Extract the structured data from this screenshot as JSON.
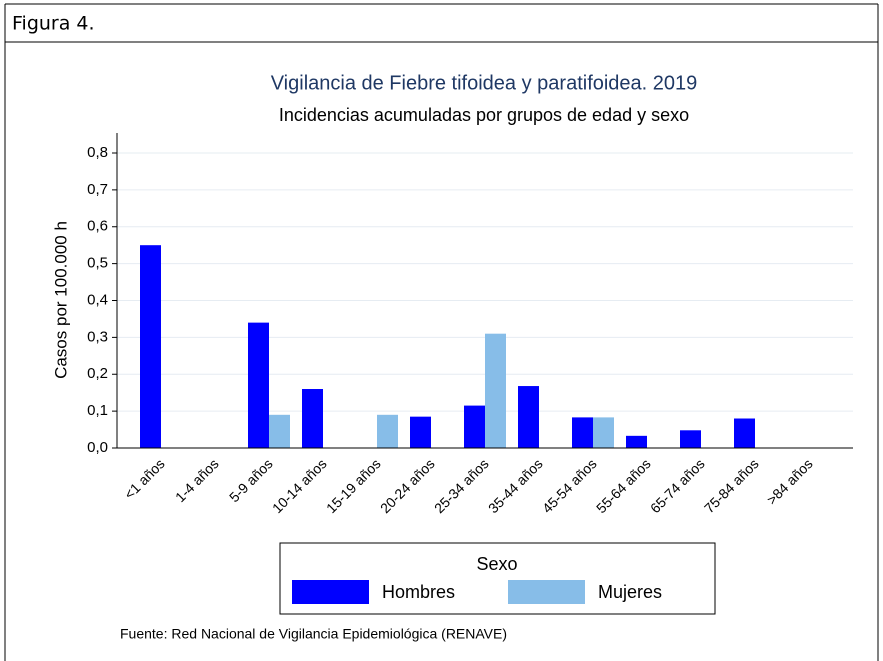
{
  "caption": "Figura 4.",
  "source": "Fuente: Red Nacional de Vigilancia Epidemiológica (RENAVE)",
  "chart_data": {
    "type": "bar",
    "title": "Vigilancia de Fiebre tifoidea y paratifoidea. 2019",
    "subtitle": "Incidencias acumuladas por grupos de edad y sexo",
    "y_label": "Casos por 100.000 h",
    "categories": [
      "<1 años",
      "1-4 años",
      "5-9 años",
      "10-14 años",
      "15-19 años",
      "20-24 años",
      "25-34 años",
      "35-44 años",
      "45-54 años",
      "55-64 años",
      "65-74 años",
      "75-84 años",
      ">84 años"
    ],
    "series": [
      {
        "name": "Hombres",
        "color": "#0000ff",
        "values": [
          0.55,
          0,
          0.34,
          0.16,
          0,
          0.085,
          0.115,
          0.168,
          0.083,
          0.033,
          0.048,
          0.08,
          0
        ]
      },
      {
        "name": "Mujeres",
        "color": "#87bde8",
        "values": [
          0,
          0,
          0.09,
          0,
          0.09,
          0,
          0.31,
          0,
          0.083,
          0,
          0,
          0,
          0
        ]
      }
    ],
    "ylim": [
      0,
      0.8
    ],
    "yticks": [
      {
        "value": 0,
        "label": "0,0"
      },
      {
        "value": 0.1,
        "label": "0,1"
      },
      {
        "value": 0.2,
        "label": "0,2"
      },
      {
        "value": 0.3,
        "label": "0,3"
      },
      {
        "value": 0.4,
        "label": "0,4"
      },
      {
        "value": 0.5,
        "label": "0,5"
      },
      {
        "value": 0.6,
        "label": "0,6"
      },
      {
        "value": 0.7,
        "label": "0,7"
      },
      {
        "value": 0.8,
        "label": "0,8"
      }
    ],
    "grid": true,
    "legend_title": "Sexo",
    "legend": "bottom"
  }
}
